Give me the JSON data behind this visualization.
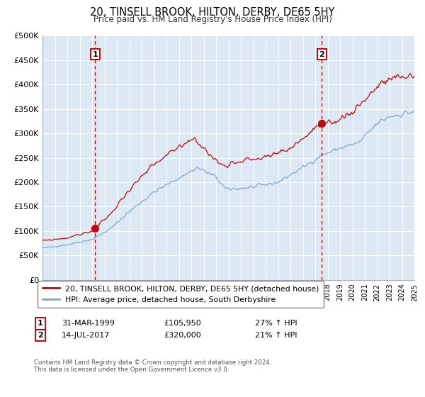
{
  "title": "20, TINSELL BROOK, HILTON, DERBY, DE65 5HY",
  "subtitle": "Price paid vs. HM Land Registry's House Price Index (HPI)",
  "legend_label_red": "20, TINSELL BROOK, HILTON, DERBY, DE65 5HY (detached house)",
  "legend_label_blue": "HPI: Average price, detached house, South Derbyshire",
  "marker1_date": 1999.25,
  "marker1_value": 105950,
  "marker1_label": "1",
  "marker1_text": "31-MAR-1999",
  "marker1_price": "£105,950",
  "marker1_hpi": "27% ↑ HPI",
  "marker2_date": 2017.54,
  "marker2_value": 320000,
  "marker2_label": "2",
  "marker2_text": "14-JUL-2017",
  "marker2_price": "£320,000",
  "marker2_hpi": "21% ↑ HPI",
  "xmin": 1995.0,
  "xmax": 2025.0,
  "ymin": 0,
  "ymax": 500000,
  "yticks": [
    0,
    50000,
    100000,
    150000,
    200000,
    250000,
    300000,
    350000,
    400000,
    450000,
    500000
  ],
  "ytick_labels": [
    "£0",
    "£50K",
    "£100K",
    "£150K",
    "£200K",
    "£250K",
    "£300K",
    "£350K",
    "£400K",
    "£450K",
    "£500K"
  ],
  "red_color": "#cc0000",
  "blue_color": "#7aaad0",
  "background_color": "#dce9f5",
  "grid_color": "#ffffff",
  "vline_color": "#cc0000",
  "marker_box_color": "#cc0000",
  "footnote": "Contains HM Land Registry data © Crown copyright and database right 2024.\nThis data is licensed under the Open Government Licence v3.0."
}
